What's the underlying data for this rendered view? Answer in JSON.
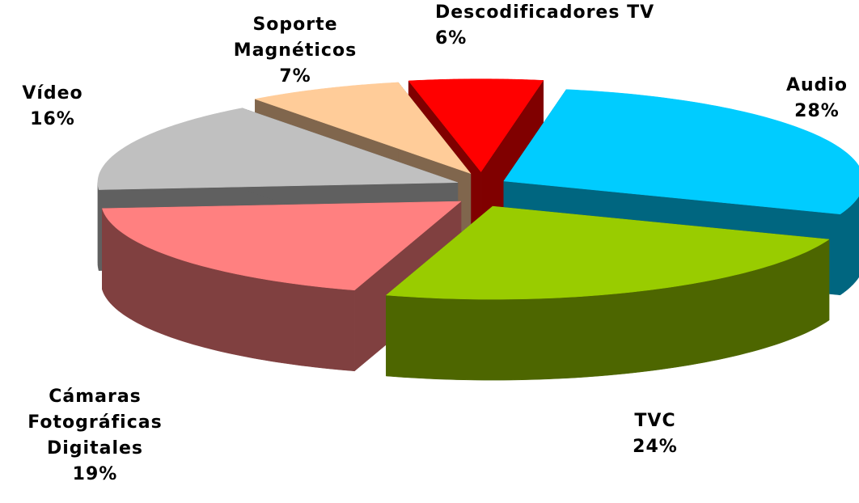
{
  "chart_data": {
    "type": "pie",
    "categories": [
      "Audio",
      "TVC",
      "Cámaras Fotográficas Digitales",
      "Vídeo",
      "Soporte Magnéticos",
      "Descodificadores TV"
    ],
    "values": [
      28,
      24,
      19,
      16,
      7,
      6
    ],
    "value_labels": [
      "28%",
      "24%",
      "19%",
      "16%",
      "7%",
      "6%"
    ],
    "colors": [
      "#00ccff",
      "#99cc00",
      "#ff8080",
      "#c0c0c0",
      "#ffcc99",
      "#ff0000"
    ]
  }
}
